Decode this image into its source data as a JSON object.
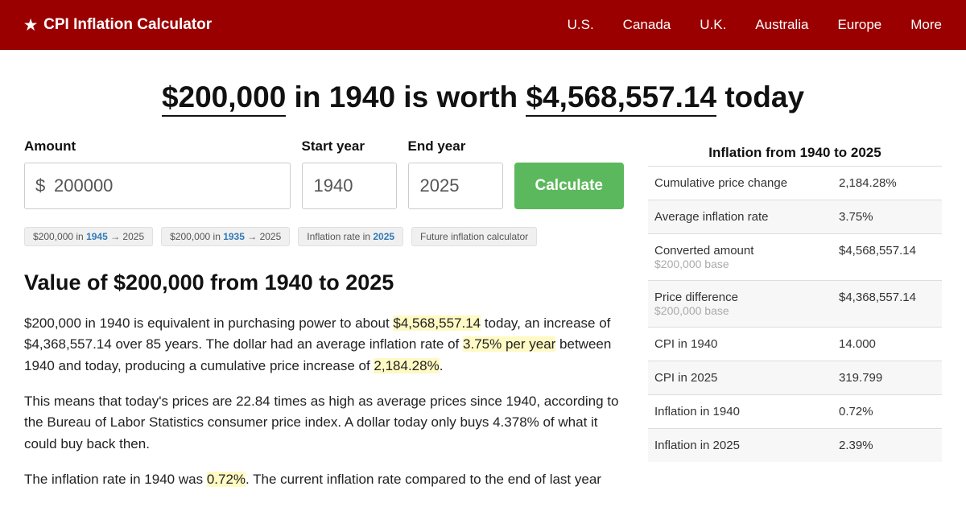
{
  "header": {
    "logo_text": "CPI Inflation Calculator",
    "nav": [
      "U.S.",
      "Canada",
      "U.K.",
      "Australia",
      "Europe",
      "More"
    ]
  },
  "headline": {
    "amount": "$200,000",
    "mid1": " in 1940 is worth ",
    "result": "$4,568,557.14",
    "tail": " today"
  },
  "form": {
    "amount_label": "Amount",
    "amount_value": "200000",
    "start_label": "Start year",
    "start_value": "1940",
    "end_label": "End year",
    "end_value": "2025",
    "button": "Calculate"
  },
  "pills": [
    {
      "p1": "$200,000 in ",
      "b": "1945",
      "p2": " → 2025"
    },
    {
      "p1": "$200,000 in ",
      "b": "1935",
      "p2": " → 2025"
    },
    {
      "p1": "Inflation rate in ",
      "b": "2025",
      "p2": ""
    },
    {
      "p1": "Future inflation calculator",
      "b": "",
      "p2": ""
    }
  ],
  "section_title": "Value of $200,000 from 1940 to 2025",
  "para1": {
    "a": "$200,000 in 1940 is equivalent in purchasing power to about ",
    "h1": "$4,568,557.14",
    "b": " today, an increase of $4,368,557.14 over 85 years. The dollar had an average inflation rate of ",
    "h2": "3.75% per year",
    "c": " between 1940 and today, producing a cumulative price increase of ",
    "h3": "2,184.28%",
    "d": "."
  },
  "para2": "This means that today's prices are 22.84 times as high as average prices since 1940, according to the Bureau of Labor Statistics consumer price index. A dollar today only buys 4.378% of what it could buy back then.",
  "para3": {
    "a": "The inflation rate in 1940 was ",
    "h1": "0.72%",
    "b": ". The current inflation rate compared to the end of last year"
  },
  "sidebar": {
    "title": "Inflation from 1940 to 2025",
    "rows": [
      {
        "label": "Cumulative price change",
        "sub": "",
        "val": "2,184.28%"
      },
      {
        "label": "Average inflation rate",
        "sub": "",
        "val": "3.75%"
      },
      {
        "label": "Converted amount",
        "sub": "$200,000 base",
        "val": "$4,568,557.14"
      },
      {
        "label": "Price difference",
        "sub": "$200,000 base",
        "val": "$4,368,557.14"
      },
      {
        "label": "CPI in 1940",
        "sub": "",
        "val": "14.000"
      },
      {
        "label": "CPI in 2025",
        "sub": "",
        "val": "319.799"
      },
      {
        "label": "Inflation in 1940",
        "sub": "",
        "val": "0.72%"
      },
      {
        "label": "Inflation in 2025",
        "sub": "",
        "val": "2.39%"
      }
    ]
  }
}
